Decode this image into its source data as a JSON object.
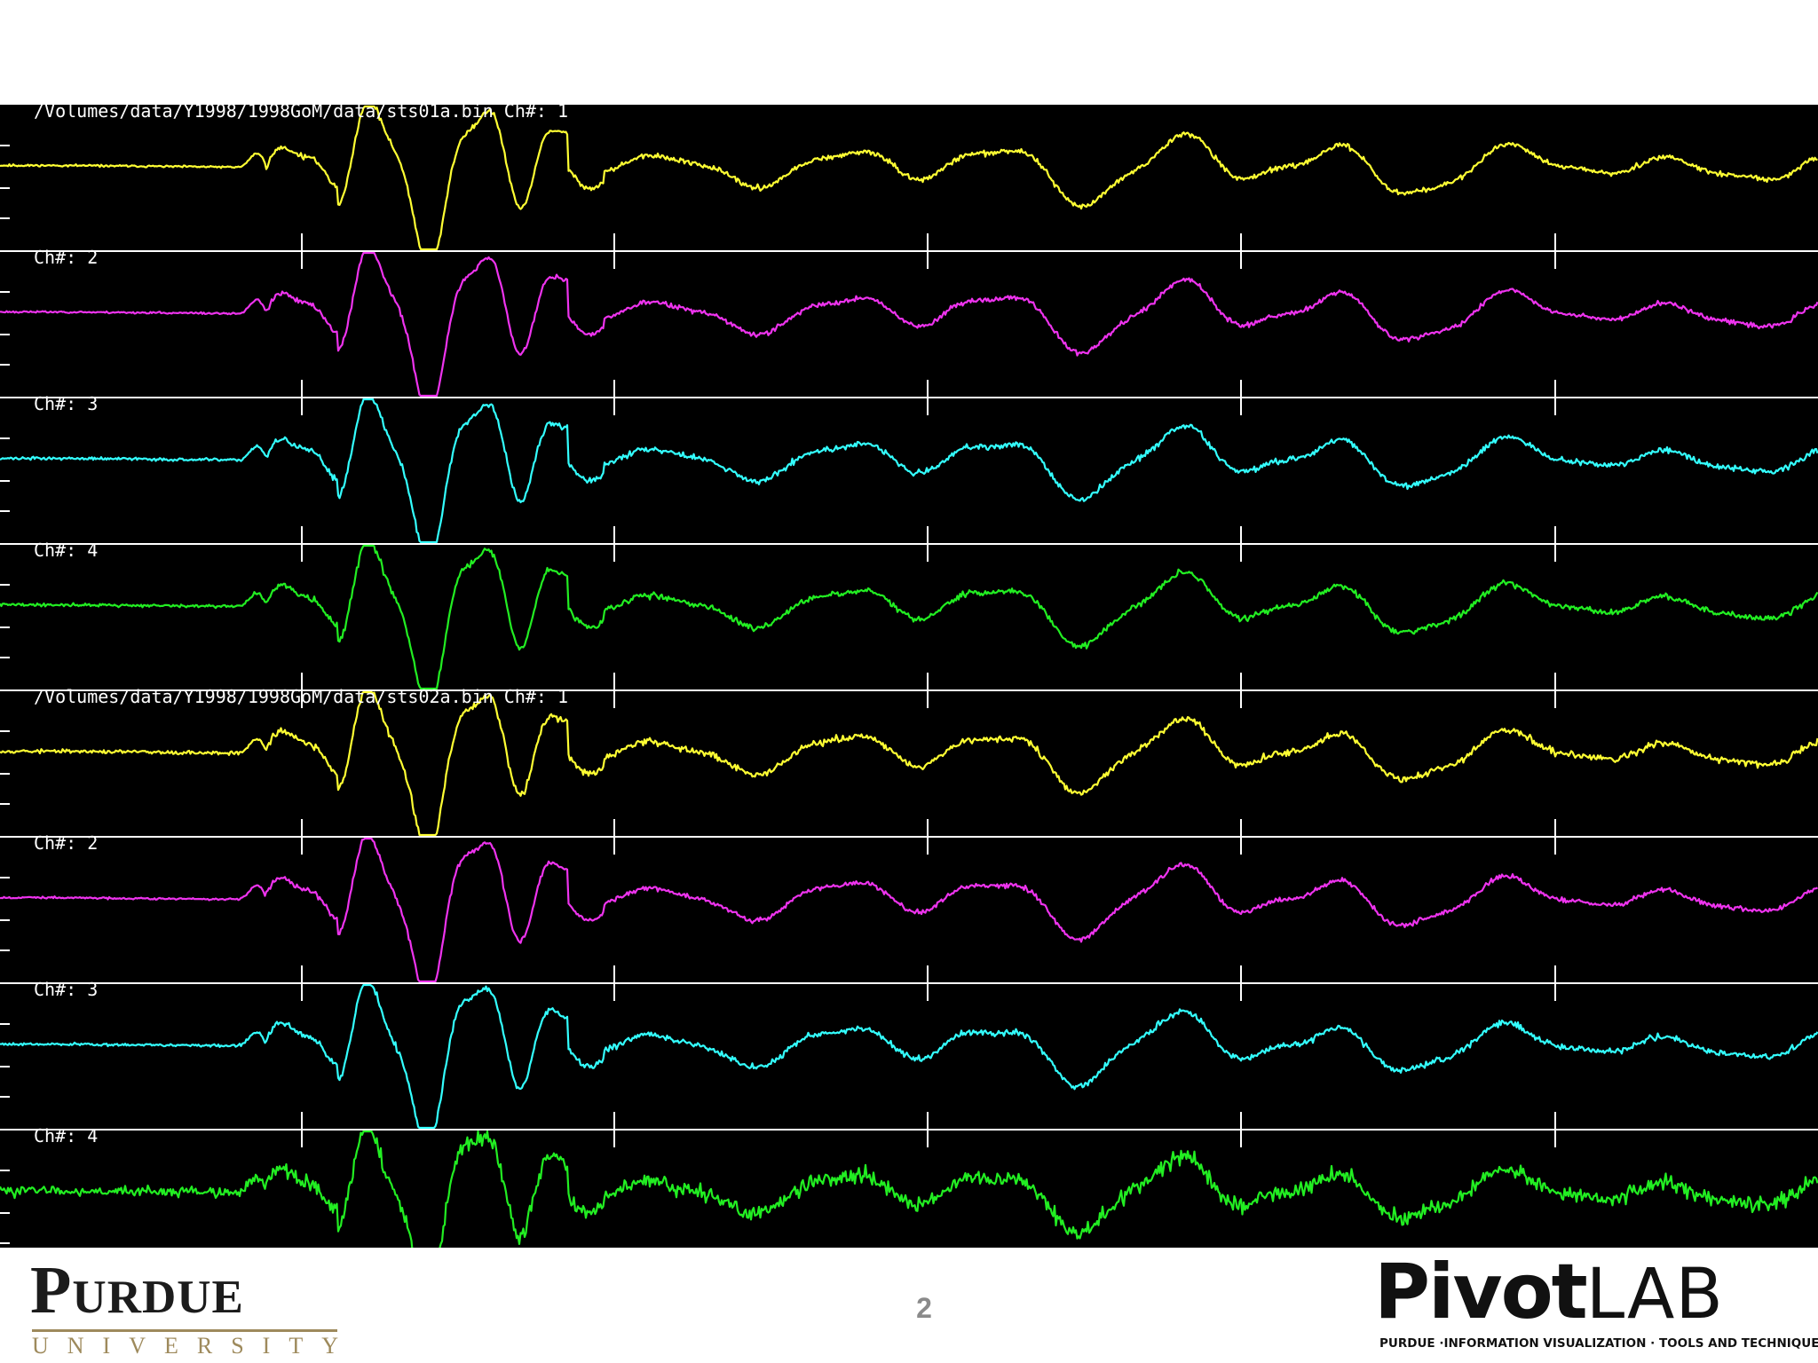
{
  "page_number": "2",
  "purdue_logo": {
    "word": "Purdue",
    "sub": "UNIVERSITY"
  },
  "pivot_logo": {
    "bold": "Pivot",
    "light": "LAB",
    "tagline": "PURDUE  ·INFORMATION VISUALIZATION · TOOLS AND TECHNIQUES"
  },
  "colors": {
    "background": "#000000",
    "ch1": "#ffff33",
    "ch2": "#ee33ee",
    "ch3": "#33ffff",
    "ch4": "#22ee22",
    "separator": "#ffffff"
  },
  "chart_data": {
    "type": "line",
    "title": "",
    "xlabel": "",
    "ylabel": "",
    "grid": false,
    "panels": [
      {
        "header": "/Volumes/data/Y1998/1998GoM/data/sts01a.bin Ch#: 1",
        "channels": [
          {
            "label": "Ch#: 1",
            "color": "#ffff33",
            "seed": 11,
            "quiet_noise": 0.02,
            "noise": 0.05
          },
          {
            "label": "Ch#: 2",
            "color": "#ee33ee",
            "seed": 23,
            "quiet_noise": 0.02,
            "noise": 0.05
          },
          {
            "label": "Ch#: 3",
            "color": "#33ffff",
            "seed": 37,
            "quiet_noise": 0.03,
            "noise": 0.06
          },
          {
            "label": "Ch#: 4",
            "color": "#22ee22",
            "seed": 41,
            "quiet_noise": 0.03,
            "noise": 0.06
          }
        ]
      },
      {
        "header": "/Volumes/data/Y1998/1998GoM/data/sts02a.bin Ch#: 1",
        "channels": [
          {
            "label": "Ch#: 1",
            "color": "#ffff33",
            "seed": 53,
            "quiet_noise": 0.04,
            "noise": 0.07
          },
          {
            "label": "Ch#: 2",
            "color": "#ee33ee",
            "seed": 67,
            "quiet_noise": 0.02,
            "noise": 0.05
          },
          {
            "label": "Ch#: 3",
            "color": "#33ffff",
            "seed": 79,
            "quiet_noise": 0.03,
            "noise": 0.06
          },
          {
            "label": "Ch#: 4",
            "color": "#22ee22",
            "seed": 83,
            "quiet_noise": 0.1,
            "noise": 0.16
          }
        ]
      }
    ]
  }
}
